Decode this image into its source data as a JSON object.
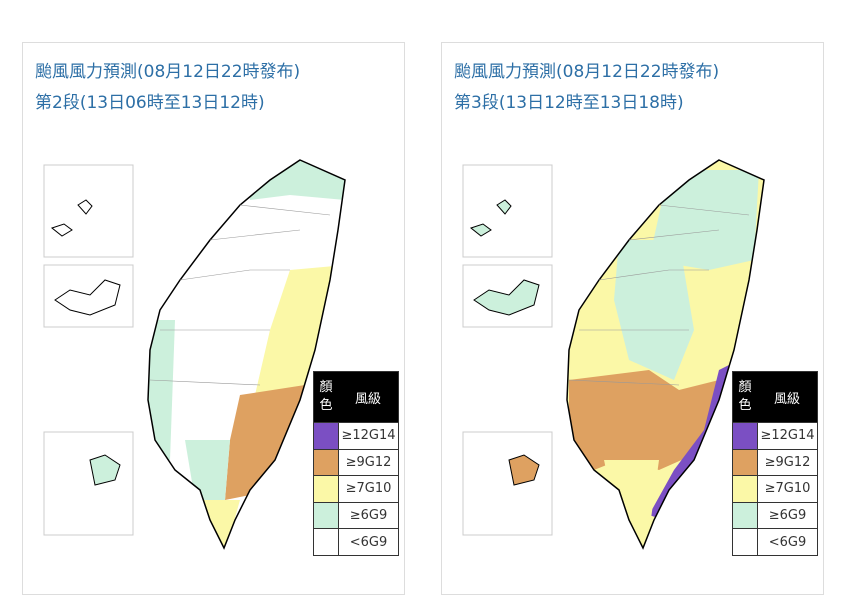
{
  "panels": [
    {
      "title": [
        "颱風風力預測(08月12日22時發布)",
        "第2段(13日06時至13日12時)"
      ],
      "legend": {
        "header": [
          "顏色",
          "風級"
        ],
        "items": [
          "≥12G14",
          "≥9G12",
          "≥7G10",
          "≥6G9",
          "<6G9"
        ]
      }
    },
    {
      "title": [
        "颱風風力預測(08月12日22時發布)",
        "第3段(13日12時至13日18時)"
      ],
      "legend": {
        "header": [
          "顏色",
          "風級"
        ],
        "items": [
          "≥12G14",
          "≥9G12",
          "≥7G10",
          "≥6G9",
          "<6G9"
        ]
      }
    }
  ]
}
